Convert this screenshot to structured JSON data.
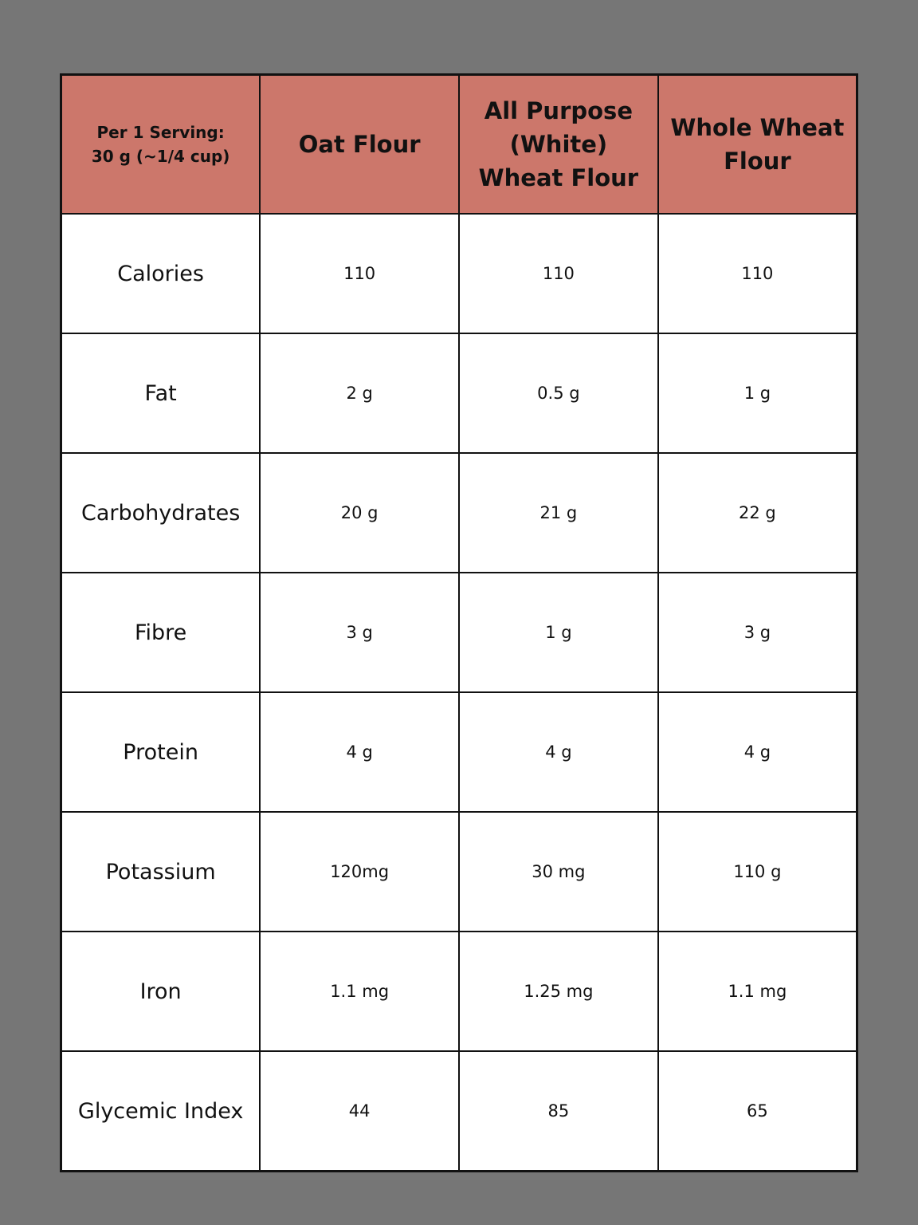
{
  "table": {
    "header": [
      "Per 1 Serving:\n30 g (~1/4 cup)",
      "Oat Flour",
      "All Purpose\n(White)\nWheat Flour",
      "Whole Wheat\nFlour"
    ],
    "rows": [
      [
        "Calories",
        "110",
        "110",
        "110"
      ],
      [
        "Fat",
        "2 g",
        "0.5 g",
        "1 g"
      ],
      [
        "Carbohydrates",
        "20 g",
        "21 g",
        "22 g"
      ],
      [
        "Fibre",
        "3 g",
        "1 g",
        "3 g"
      ],
      [
        "Protein",
        "4 g",
        "4 g",
        "4 g"
      ],
      [
        "Potassium",
        "120mg",
        "30 mg",
        "110 g"
      ],
      [
        "Iron",
        "1.1 mg",
        "1.25 mg",
        "1.1 mg"
      ],
      [
        "Glycemic Index",
        "44",
        "85",
        "65"
      ]
    ]
  }
}
